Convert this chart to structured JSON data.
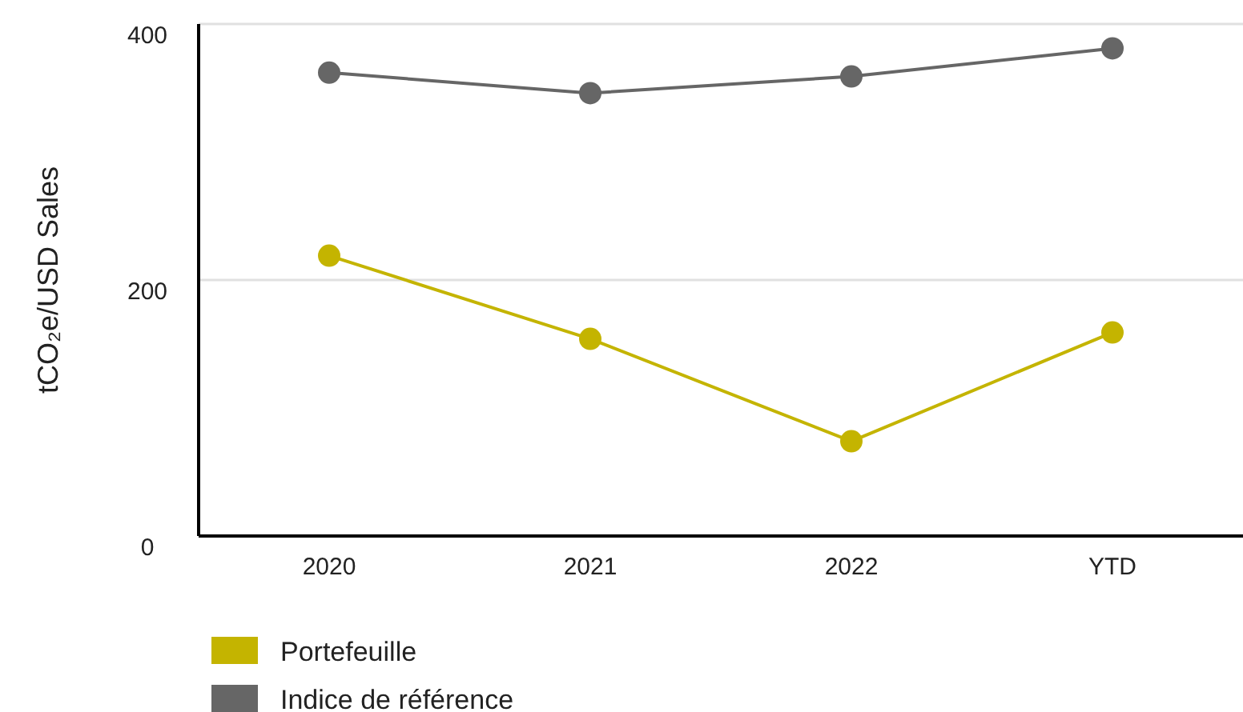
{
  "chart_data": {
    "type": "line",
    "ylabel": "tCO₂e/USD Sales",
    "categories": [
      "2020",
      "2021",
      "2022",
      "YTD"
    ],
    "series": [
      {
        "name": "Portefeuille",
        "color": "#c4b400",
        "values": [
          219,
          154,
          74,
          159
        ]
      },
      {
        "name": "Indice de référence",
        "color": "#666666",
        "values": [
          362,
          346,
          359,
          381
        ]
      }
    ],
    "ylim": [
      0,
      400
    ],
    "yticks": [
      0,
      200,
      400
    ],
    "grid": "y",
    "legend": "bottom left",
    "marker": "circle",
    "line_style": "solid"
  }
}
